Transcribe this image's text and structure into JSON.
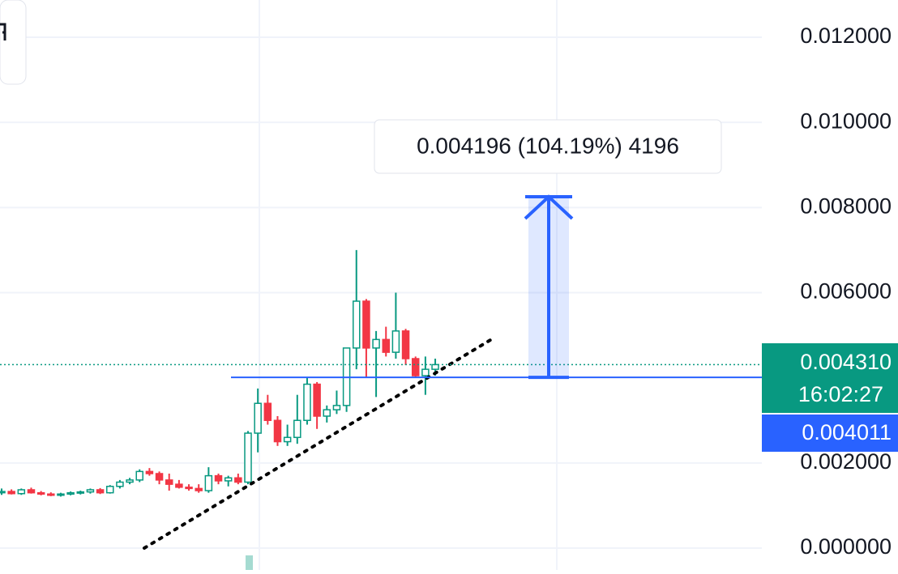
{
  "chart_data": {
    "type": "candlestick",
    "ylim": [
      -0.000513,
      0.012874
    ],
    "yticks": [
      {
        "value": 0,
        "label": "0.000000"
      },
      {
        "value": 0.002,
        "label": "0.002000"
      },
      {
        "value": 0.006,
        "label": "0.006000"
      },
      {
        "value": 0.008,
        "label": "0.008000"
      },
      {
        "value": 0.01,
        "label": "0.010000"
      },
      {
        "value": 0.012,
        "label": "0.012000"
      }
    ],
    "grid": true,
    "up_color": "#089981",
    "down_color": "#f23645",
    "categories": [
      null,
      null,
      null,
      null,
      null,
      null,
      null,
      null,
      null,
      null,
      null,
      null,
      null,
      null,
      null,
      null,
      null,
      null,
      null,
      null,
      null,
      null,
      null,
      null,
      null,
      null,
      null,
      null,
      null,
      null,
      null,
      null,
      null,
      null,
      null,
      null,
      null,
      null,
      null,
      null,
      null,
      null,
      null,
      null,
      null
    ],
    "open": [
      0.0013,
      0.00133,
      0.00128,
      0.00137,
      0.0013,
      0.00127,
      0.00125,
      0.00127,
      0.0013,
      0.00132,
      0.00137,
      0.0013,
      0.00145,
      0.00155,
      0.0016,
      0.0018,
      0.00175,
      0.0016,
      0.0015,
      0.00143,
      0.0014,
      0.00135,
      0.0017,
      0.00158,
      0.00165,
      0.00155,
      0.0027,
      0.0034,
      0.003,
      0.0025,
      0.0026,
      0.003,
      0.00385,
      0.0031,
      0.00325,
      0.00335,
      0.0047,
      0.0058,
      0.0047,
      0.0049,
      0.0046,
      0.0051,
      0.00445,
      0.00405,
      0.0042
    ],
    "high": [
      0.0014,
      0.00138,
      0.0014,
      0.00142,
      0.00134,
      0.00131,
      0.0013,
      0.00133,
      0.00135,
      0.0014,
      0.00141,
      0.00148,
      0.0016,
      0.00165,
      0.00185,
      0.00188,
      0.0018,
      0.00175,
      0.0016,
      0.0015,
      0.0015,
      0.0019,
      0.00175,
      0.0017,
      0.00175,
      0.00275,
      0.00375,
      0.0036,
      0.0031,
      0.0029,
      0.0036,
      0.004,
      0.0039,
      0.00335,
      0.0037,
      0.0047,
      0.007,
      0.00585,
      0.0051,
      0.0052,
      0.006,
      0.00515,
      0.0045,
      0.0045,
      0.00445
    ],
    "low": [
      0.00125,
      0.00126,
      0.00125,
      0.00128,
      0.00124,
      0.00122,
      0.00121,
      0.00124,
      0.00126,
      0.00128,
      0.00127,
      0.00128,
      0.0014,
      0.0015,
      0.00155,
      0.0017,
      0.0015,
      0.00135,
      0.0014,
      0.00135,
      0.0013,
      0.0013,
      0.0015,
      0.00145,
      0.0015,
      0.0015,
      0.00225,
      0.0029,
      0.0024,
      0.0024,
      0.00245,
      0.0029,
      0.0028,
      0.00295,
      0.00315,
      0.0032,
      0.0042,
      0.004,
      0.00355,
      0.0045,
      0.00445,
      0.0043,
      0.004,
      0.0036,
      0.00405
    ],
    "close": [
      0.00133,
      0.00128,
      0.00137,
      0.0013,
      0.00127,
      0.00125,
      0.00127,
      0.0013,
      0.00132,
      0.00137,
      0.0013,
      0.00145,
      0.00155,
      0.0016,
      0.0018,
      0.00175,
      0.0016,
      0.0015,
      0.00143,
      0.0014,
      0.00135,
      0.0017,
      0.00158,
      0.00165,
      0.00155,
      0.0027,
      0.0034,
      0.003,
      0.0025,
      0.0026,
      0.003,
      0.00385,
      0.0031,
      0.00325,
      0.00335,
      0.0047,
      0.0058,
      0.0047,
      0.0049,
      0.0046,
      0.0051,
      0.00445,
      0.00405,
      0.0042,
      0.00431
    ],
    "last_price": {
      "value": 0.00431,
      "label": "0.004310"
    },
    "countdown": "16:02:27",
    "line_price": {
      "value": 0.004011,
      "label": "0.004011"
    },
    "measure_label": "0.004196 (104.19%) 4196"
  }
}
